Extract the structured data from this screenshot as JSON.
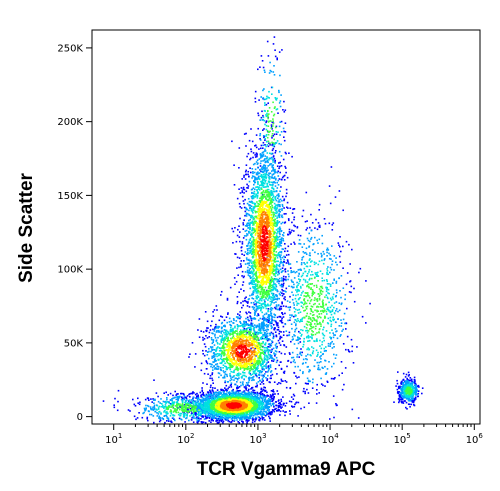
{
  "chart_data": {
    "type": "scatter",
    "title": "",
    "xlabel": "TCR Vgamma9 APC",
    "ylabel": "Side Scatter",
    "x_scale": "log",
    "xlim": [
      5,
      1200000
    ],
    "ylim": [
      -5000,
      262143
    ],
    "x_ticks": [
      {
        "value": 10,
        "base": "10",
        "exp": "1"
      },
      {
        "value": 100,
        "base": "10",
        "exp": "2"
      },
      {
        "value": 1000,
        "base": "10",
        "exp": "3"
      },
      {
        "value": 10000,
        "base": "10",
        "exp": "4"
      },
      {
        "value": 100000,
        "base": "10",
        "exp": "5"
      },
      {
        "value": 1000000,
        "base": "10",
        "exp": "6"
      }
    ],
    "y_ticks": [
      {
        "value": 0,
        "label": "0"
      },
      {
        "value": 50000,
        "label": "50K"
      },
      {
        "value": 100000,
        "label": "100K"
      },
      {
        "value": 150000,
        "label": "150K"
      },
      {
        "value": 200000,
        "label": "200K"
      },
      {
        "value": 250000,
        "label": "250K"
      }
    ],
    "grid": false,
    "colormap": [
      "#0000ff",
      "#00a0ff",
      "#00e0e0",
      "#40ff40",
      "#ffff00",
      "#ff8000",
      "#ff0000"
    ],
    "populations": [
      {
        "x_center": 450,
        "y_center": 8000,
        "x_spread_log": 0.28,
        "y_spread": 5000,
        "weight": 0.3
      },
      {
        "x_center": 1200,
        "y_center": 118000,
        "x_spread_log": 0.14,
        "y_spread": 32000,
        "weight": 0.3
      },
      {
        "x_center": 600,
        "y_center": 45000,
        "x_spread_log": 0.25,
        "y_spread": 12000,
        "weight": 0.17
      },
      {
        "x_center": 6000,
        "y_center": 75000,
        "x_spread_log": 0.25,
        "y_spread": 30000,
        "weight": 0.1
      },
      {
        "x_center": 90,
        "y_center": 6000,
        "x_spread_log": 0.35,
        "y_spread": 5000,
        "weight": 0.06
      },
      {
        "x_center": 120000,
        "y_center": 18000,
        "x_spread_log": 0.07,
        "y_spread": 4000,
        "weight": 0.05
      },
      {
        "x_center": 1500,
        "y_center": 200000,
        "x_spread_log": 0.1,
        "y_spread": 25000,
        "weight": 0.02
      }
    ]
  }
}
